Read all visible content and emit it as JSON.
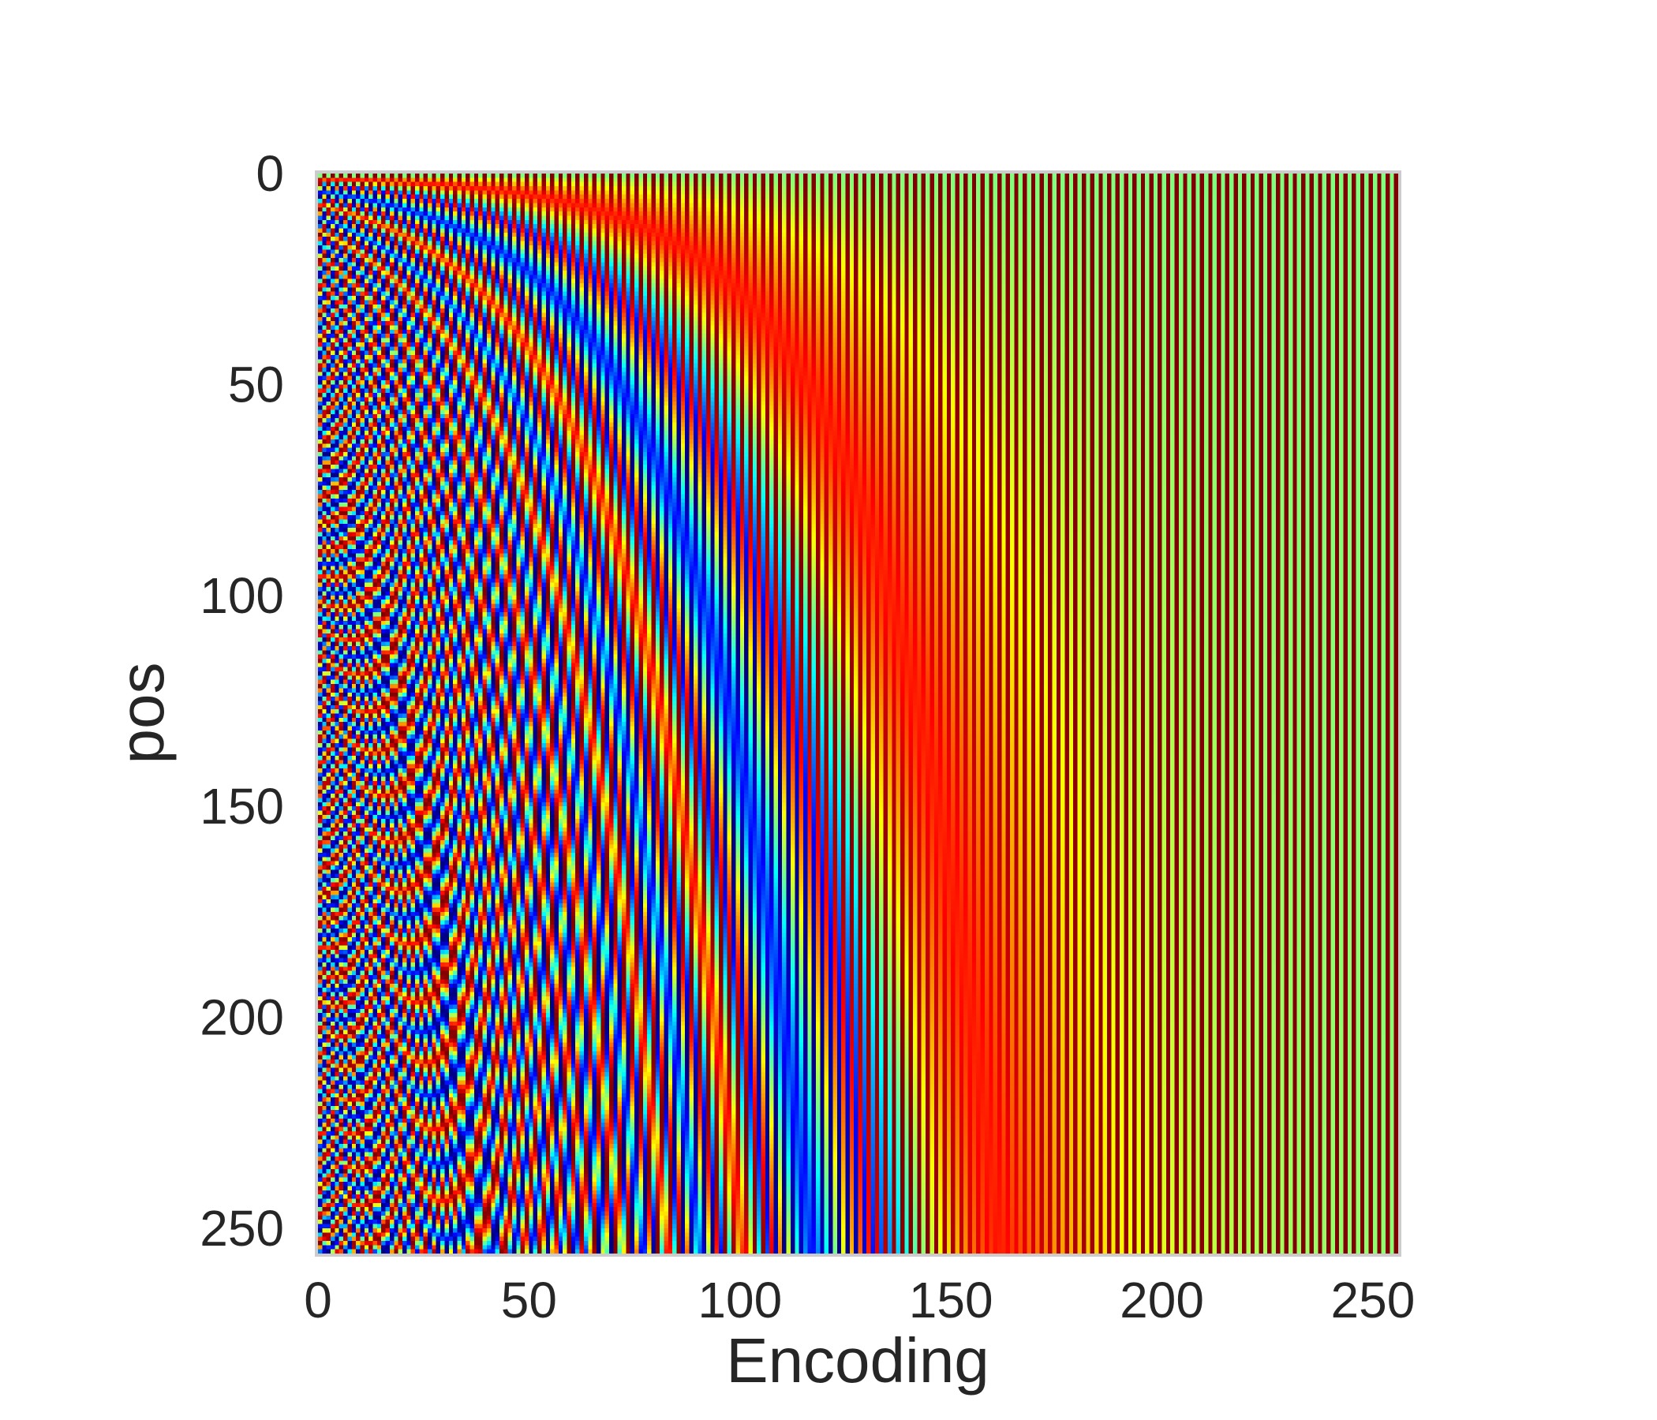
{
  "chart_data": {
    "type": "heatmap",
    "title": "",
    "xlabel": "Encoding",
    "ylabel": "pos",
    "rows": 256,
    "cols": 256,
    "xlim": [
      0,
      256
    ],
    "ylim": [
      256,
      0
    ],
    "y_axis_inverted": true,
    "xticks": [
      0,
      50,
      100,
      150,
      200,
      250
    ],
    "yticks": [
      0,
      50,
      100,
      150,
      200,
      250
    ],
    "grid": false,
    "colormap": "jet",
    "value_range": [
      -1,
      1
    ],
    "pattern": "sinusoidal positional encoding: even columns sin(pos / 10000^(i/256)), odd columns cos(pos / 10000^((i-1)/256))",
    "border_color": "#cccccc"
  }
}
